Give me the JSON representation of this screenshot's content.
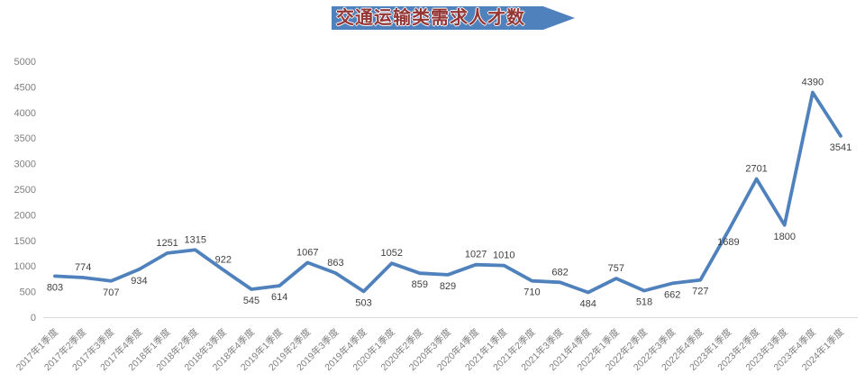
{
  "title": {
    "text": "交通运输类需求人才数",
    "banner_color": "#4f81bd",
    "text_color": "#943634"
  },
  "chart_data": {
    "type": "line",
    "title": "交通运输类需求人才数",
    "xlabel": "",
    "ylabel": "",
    "categories": [
      "2017年1季度",
      "2017年2季度",
      "2017年3季度",
      "2017年4季度",
      "2018年1季度",
      "2018年2季度",
      "2018年3季度",
      "2018年4季度",
      "2019年1季度",
      "2019年2季度",
      "2019年3季度",
      "2019年4季度",
      "2020年1季度",
      "2020年2季度",
      "2020年3季度",
      "2020年4季度",
      "2021年1季度",
      "2021年2季度",
      "2021年3季度",
      "2021年4季度",
      "2022年1季度",
      "2022年2季度",
      "2022年3季度",
      "2022年4季度",
      "2023年1季度",
      "2023年2季度",
      "2023年3季度",
      "2023年4季度",
      "2024年1季度"
    ],
    "values": [
      803,
      774,
      707,
      934,
      1251,
      1315,
      922,
      545,
      614,
      1067,
      863,
      503,
      1052,
      859,
      829,
      1027,
      1010,
      710,
      682,
      484,
      757,
      518,
      662,
      727,
      1689,
      2701,
      1800,
      4390,
      3541
    ],
    "label_placements": [
      "below",
      "above",
      "below",
      "below",
      "above",
      "above",
      "above",
      "below",
      "below",
      "above",
      "above",
      "below",
      "above",
      "below",
      "below",
      "above",
      "above",
      "below",
      "above",
      "below",
      "above",
      "below",
      "below",
      "below",
      "below",
      "above",
      "below",
      "above",
      "below"
    ],
    "ylim": [
      0,
      5000
    ],
    "ytick_step": 500,
    "grid": false,
    "legend": false,
    "data_labels": true,
    "line_color": "#4f81bd",
    "axis_label_color": "#7f7f7f",
    "data_label_color": "#3f3f3f",
    "axis_line_color": "#d9d9d9"
  }
}
